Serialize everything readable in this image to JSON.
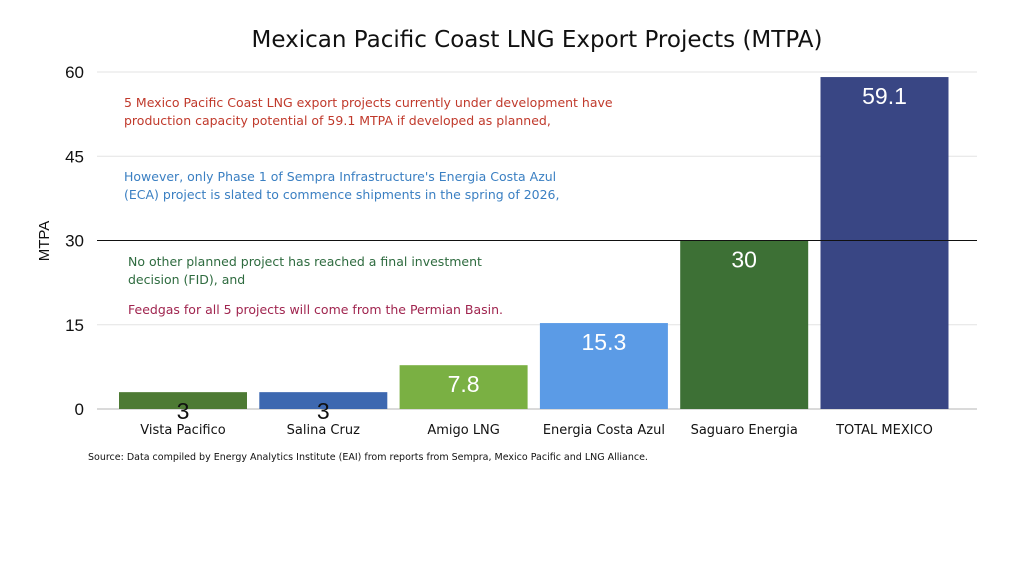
{
  "chart_data": {
    "type": "bar",
    "title": "Mexican Pacific Coast LNG Export Projects (MTPA)",
    "ylabel": "MTPA",
    "xlabel": "",
    "ylim": [
      0,
      60
    ],
    "yticks": [
      0,
      15,
      30,
      45,
      60
    ],
    "grid": true,
    "reference_line": 30,
    "legend": "none",
    "categories": [
      "Vista Pacifico",
      "Salina Cruz",
      "Amigo LNG",
      "Energia Costa Azul",
      "Saguaro Energia",
      "TOTAL MEXICO"
    ],
    "values": [
      3,
      3,
      7.8,
      15.3,
      30,
      59.1
    ],
    "data_labels": [
      "3",
      "3",
      "7.8",
      "15.3",
      "30",
      "59.1"
    ],
    "colors": [
      "#4d7a34",
      "#3d68b0",
      "#7ab043",
      "#5b9be6",
      "#3d7035",
      "#394684"
    ],
    "label_colors": [
      "#111111",
      "#111111",
      "#ffffff",
      "#ffffff",
      "#ffffff",
      "#ffffff"
    ],
    "annotations": [
      {
        "lines": [
          "5 Mexico Pacific Coast LNG export projects currently under development have",
          "production capacity potential of 59.1 MTPA if developed as planned,"
        ],
        "color": "#c0392b"
      },
      {
        "lines": [
          "However, only Phase 1 of Sempra Infrastructure's Energia Costa Azul",
          "(ECA) project is slated to commence shipments in the spring of 2026,"
        ],
        "color": "#3a7fc2"
      },
      {
        "lines": [
          "No other planned project has reached a final investment",
          "decision (FID), and"
        ],
        "color": "#2e6b3f"
      },
      {
        "lines": [
          "Feedgas for all 5 projects will come from the Permian Basin."
        ],
        "color": "#a0254f"
      }
    ],
    "source": "Source: Data compiled by Energy Analytics Institute (EAI) from reports from Sempra, Mexico Pacific and LNG Alliance."
  }
}
